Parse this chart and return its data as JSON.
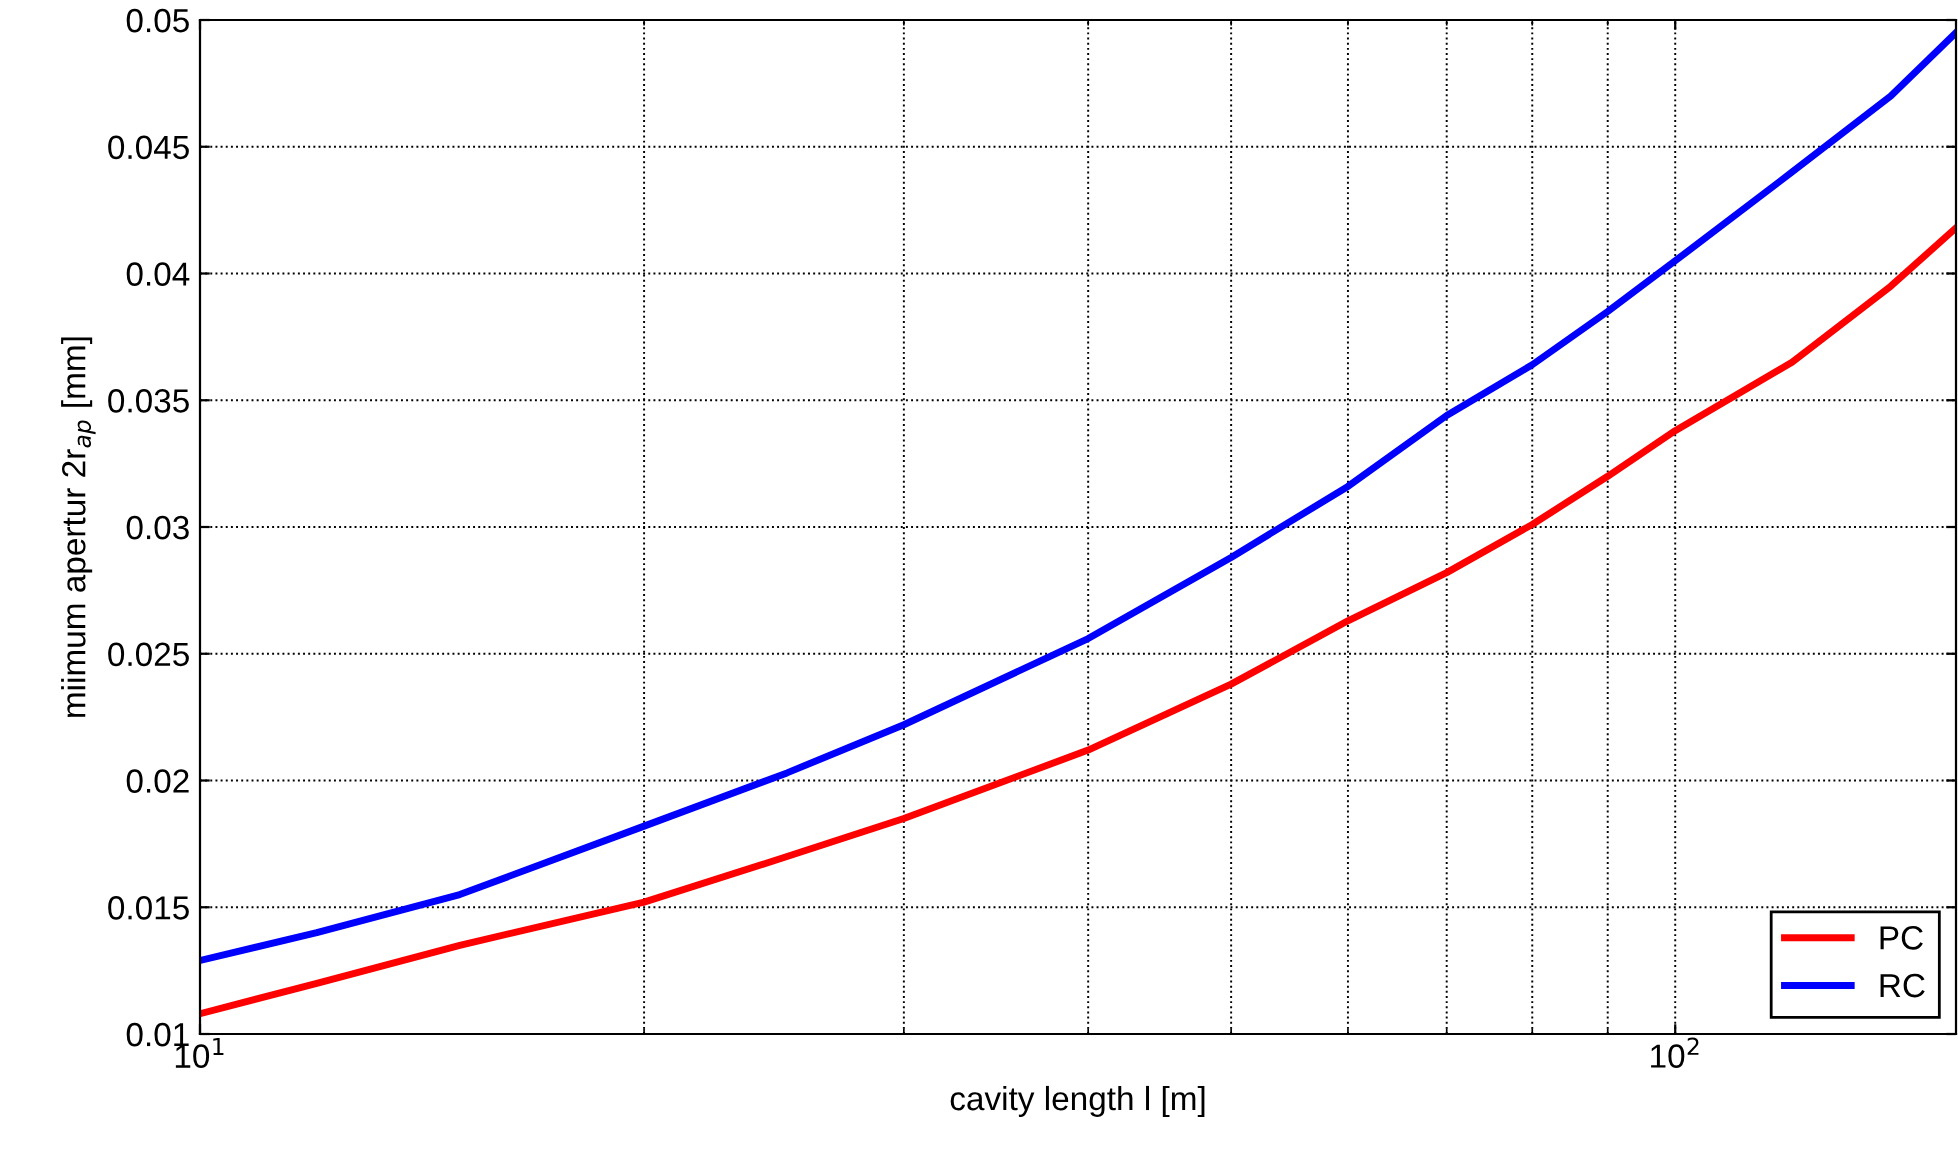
{
  "chart_data": {
    "type": "line",
    "xlabel": "cavity length l [m]",
    "ylabel": "miimum apertur 2r$_{ap}$ [mm]",
    "log": "x",
    "xlim": [
      10,
      155
    ],
    "ylim": [
      0.01,
      0.05
    ],
    "xticks": [
      {
        "value": 10,
        "label": "10$^{1}$"
      },
      {
        "value": 100,
        "label": "10$^{2}$"
      }
    ],
    "yticks": [
      0.01,
      0.015,
      0.02,
      0.025,
      0.03,
      0.035,
      0.04,
      0.045,
      0.05
    ],
    "grid": true,
    "legend": "bottom right",
    "line_style": "solid",
    "marker": "none",
    "series": [
      {
        "name": "PC",
        "color": "#ff0000",
        "x": [
          10,
          12,
          15,
          20,
          25,
          30,
          40,
          50,
          60,
          70,
          80,
          90,
          100,
          120,
          140,
          155
        ],
        "values": [
          0.0108,
          0.012,
          0.0135,
          0.0152,
          0.017,
          0.0185,
          0.0212,
          0.0238,
          0.0263,
          0.0282,
          0.0301,
          0.032,
          0.0338,
          0.0365,
          0.0395,
          0.0418
        ]
      },
      {
        "name": "RC",
        "color": "#0000ff",
        "x": [
          10,
          12,
          15,
          20,
          25,
          30,
          40,
          50,
          60,
          70,
          80,
          90,
          100,
          120,
          140,
          155
        ],
        "values": [
          0.0129,
          0.014,
          0.0155,
          0.0182,
          0.0203,
          0.0222,
          0.0256,
          0.0288,
          0.0316,
          0.0344,
          0.0364,
          0.0385,
          0.0405,
          0.044,
          0.047,
          0.0495
        ]
      }
    ]
  }
}
